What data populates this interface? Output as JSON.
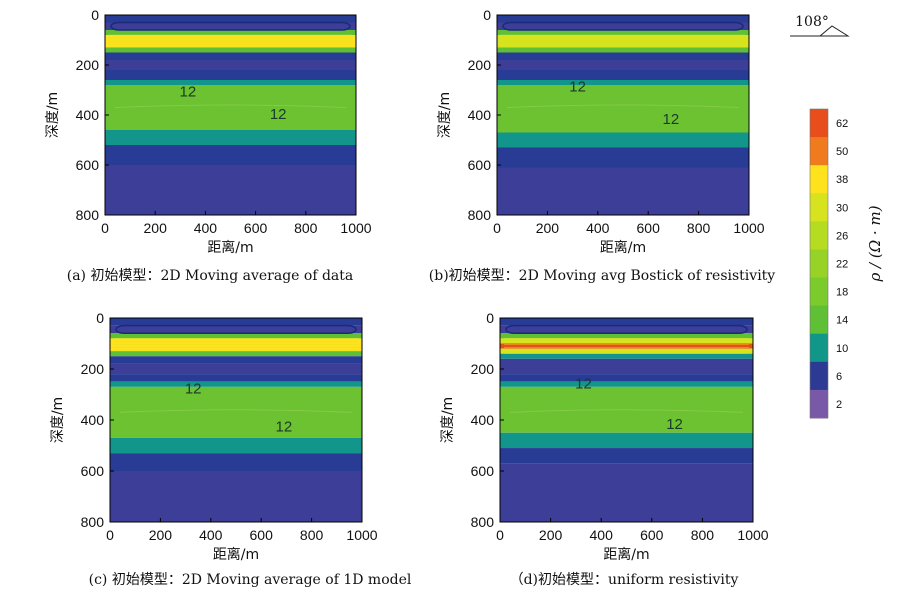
{
  "chart_data": [
    {
      "type": "heatmap",
      "caption": "(a) 初始模型：2D Moving average of data",
      "xlabel": "距离/m",
      "ylabel": "深度/m",
      "xlim": [
        0,
        1000
      ],
      "ylim": [
        0,
        800
      ],
      "xticks": [
        "0",
        "200",
        "400",
        "600",
        "800",
        "1000"
      ],
      "yticks": [
        "0",
        "200",
        "400",
        "600",
        "800"
      ],
      "contour_labels": [
        {
          "text": "12",
          "x": 330,
          "y": 310
        },
        {
          "text": "12",
          "x": 690,
          "y": 400
        }
      ],
      "layers": [
        {
          "top": 0,
          "bottom": 30,
          "resistivity": 6
        },
        {
          "top": 30,
          "bottom": 60,
          "resistivity": 4
        },
        {
          "top": 60,
          "bottom": 80,
          "resistivity": 14
        },
        {
          "top": 80,
          "bottom": 130,
          "resistivity": 38
        },
        {
          "top": 130,
          "bottom": 150,
          "resistivity": 14
        },
        {
          "top": 150,
          "bottom": 180,
          "resistivity": 6
        },
        {
          "top": 180,
          "bottom": 220,
          "resistivity": 4
        },
        {
          "top": 220,
          "bottom": 260,
          "resistivity": 6
        },
        {
          "top": 260,
          "bottom": 280,
          "resistivity": 10
        },
        {
          "top": 280,
          "bottom": 460,
          "resistivity": 12
        },
        {
          "top": 460,
          "bottom": 520,
          "resistivity": 10
        },
        {
          "top": 520,
          "bottom": 600,
          "resistivity": 6
        },
        {
          "top": 600,
          "bottom": 800,
          "resistivity": 4
        }
      ]
    },
    {
      "type": "heatmap",
      "caption": "(b)初始模型：2D Moving avg Bostick of resistivity",
      "xlabel": "距离/m",
      "ylabel": "深度/m",
      "xlim": [
        0,
        1000
      ],
      "ylim": [
        0,
        800
      ],
      "xticks": [
        "0",
        "200",
        "400",
        "600",
        "800",
        "1000"
      ],
      "yticks": [
        "0",
        "200",
        "400",
        "600",
        "800"
      ],
      "contour_labels": [
        {
          "text": "12",
          "x": 320,
          "y": 290
        },
        {
          "text": "12",
          "x": 690,
          "y": 420
        }
      ],
      "layers": [
        {
          "top": 0,
          "bottom": 30,
          "resistivity": 6
        },
        {
          "top": 30,
          "bottom": 60,
          "resistivity": 4
        },
        {
          "top": 60,
          "bottom": 80,
          "resistivity": 14
        },
        {
          "top": 80,
          "bottom": 130,
          "resistivity": 30
        },
        {
          "top": 130,
          "bottom": 150,
          "resistivity": 14
        },
        {
          "top": 150,
          "bottom": 180,
          "resistivity": 6
        },
        {
          "top": 180,
          "bottom": 220,
          "resistivity": 4
        },
        {
          "top": 220,
          "bottom": 260,
          "resistivity": 6
        },
        {
          "top": 260,
          "bottom": 280,
          "resistivity": 10
        },
        {
          "top": 280,
          "bottom": 470,
          "resistivity": 12
        },
        {
          "top": 470,
          "bottom": 530,
          "resistivity": 10
        },
        {
          "top": 530,
          "bottom": 610,
          "resistivity": 6
        },
        {
          "top": 610,
          "bottom": 800,
          "resistivity": 4
        }
      ]
    },
    {
      "type": "heatmap",
      "caption": "(c) 初始模型：2D Moving average of 1D model",
      "xlabel": "距离/m",
      "ylabel": "深度/m",
      "xlim": [
        0,
        1000
      ],
      "ylim": [
        0,
        800
      ],
      "xticks": [
        "0",
        "200",
        "400",
        "600",
        "800",
        "1000"
      ],
      "yticks": [
        "0",
        "200",
        "400",
        "600",
        "800"
      ],
      "contour_labels": [
        {
          "text": "12",
          "x": 330,
          "y": 280
        },
        {
          "text": "12",
          "x": 690,
          "y": 430
        }
      ],
      "layers": [
        {
          "top": 0,
          "bottom": 30,
          "resistivity": 6
        },
        {
          "top": 30,
          "bottom": 60,
          "resistivity": 4
        },
        {
          "top": 60,
          "bottom": 80,
          "resistivity": 14
        },
        {
          "top": 80,
          "bottom": 130,
          "resistivity": 38
        },
        {
          "top": 130,
          "bottom": 150,
          "resistivity": 14
        },
        {
          "top": 150,
          "bottom": 180,
          "resistivity": 6
        },
        {
          "top": 180,
          "bottom": 220,
          "resistivity": 4
        },
        {
          "top": 220,
          "bottom": 250,
          "resistivity": 6
        },
        {
          "top": 250,
          "bottom": 270,
          "resistivity": 10
        },
        {
          "top": 270,
          "bottom": 470,
          "resistivity": 12
        },
        {
          "top": 470,
          "bottom": 530,
          "resistivity": 10
        },
        {
          "top": 530,
          "bottom": 600,
          "resistivity": 6
        },
        {
          "top": 600,
          "bottom": 800,
          "resistivity": 4
        }
      ]
    },
    {
      "type": "heatmap",
      "caption": "（d)初始模型：uniform resistivity",
      "xlabel": "距离/m",
      "ylabel": "深度/m",
      "xlim": [
        0,
        1000
      ],
      "ylim": [
        0,
        800
      ],
      "xticks": [
        "0",
        "200",
        "400",
        "600",
        "800",
        "1000"
      ],
      "yticks": [
        "0",
        "200",
        "400",
        "600",
        "800"
      ],
      "contour_labels": [
        {
          "text": "12",
          "x": 330,
          "y": 260
        },
        {
          "text": "12",
          "x": 690,
          "y": 420
        }
      ],
      "layers": [
        {
          "top": 0,
          "bottom": 30,
          "resistivity": 6
        },
        {
          "top": 30,
          "bottom": 60,
          "resistivity": 4
        },
        {
          "top": 60,
          "bottom": 80,
          "resistivity": 14
        },
        {
          "top": 80,
          "bottom": 100,
          "resistivity": 30
        },
        {
          "top": 100,
          "bottom": 120,
          "resistivity": 62
        },
        {
          "top": 120,
          "bottom": 140,
          "resistivity": 30
        },
        {
          "top": 140,
          "bottom": 160,
          "resistivity": 10
        },
        {
          "top": 160,
          "bottom": 220,
          "resistivity": 4
        },
        {
          "top": 220,
          "bottom": 250,
          "resistivity": 6
        },
        {
          "top": 250,
          "bottom": 270,
          "resistivity": 10
        },
        {
          "top": 270,
          "bottom": 450,
          "resistivity": 12
        },
        {
          "top": 450,
          "bottom": 510,
          "resistivity": 10
        },
        {
          "top": 510,
          "bottom": 570,
          "resistivity": 6
        },
        {
          "top": 570,
          "bottom": 800,
          "resistivity": 4
        }
      ]
    }
  ],
  "colorbar": {
    "title": "ρ / (Ω · m)",
    "ticks": [
      "62",
      "50",
      "38",
      "30",
      "26",
      "22",
      "18",
      "14",
      "10",
      "6",
      "2"
    ],
    "colors": [
      "#e84e1c",
      "#f07a1e",
      "#fde21d",
      "#d6e31e",
      "#b6dc22",
      "#97d327",
      "#7ccb2d",
      "#5fbf35",
      "#11978a",
      "#2d3a94",
      "#7a58a8"
    ]
  },
  "angle": {
    "label": "108°"
  }
}
